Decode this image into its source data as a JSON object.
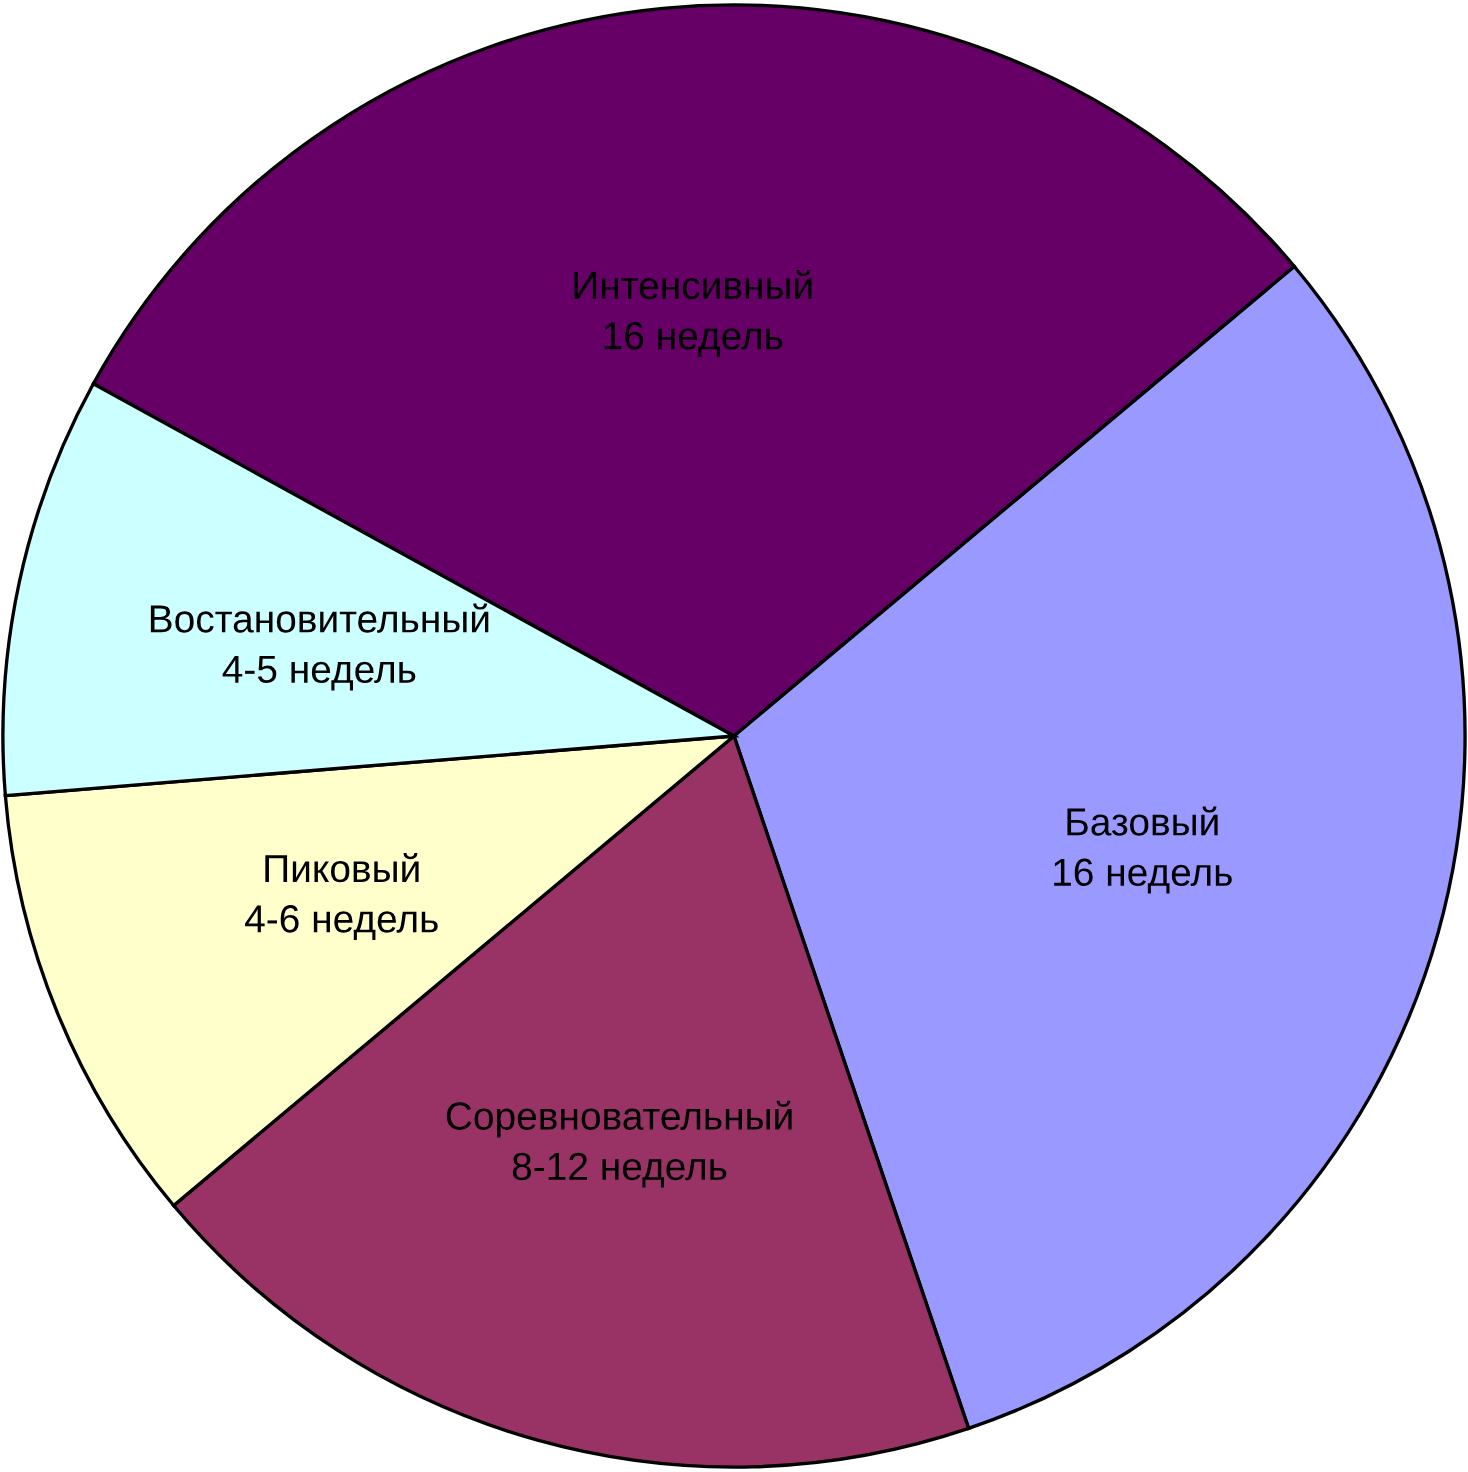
{
  "chart_data": {
    "type": "pie",
    "categories": [
      "Интенсивный\n16 недель",
      "Базовый\n16 недель",
      "Соревновательный\n8-12 недель",
      "Пиковый\n4-6 недель",
      "Востановительный\n4-5 недель"
    ],
    "values": [
      30.9,
      30.9,
      19.1,
      9.8,
      9.3
    ],
    "colors": [
      "#660066",
      "#9999ff",
      "#993366",
      "#ffffcc",
      "#ccffff"
    ],
    "legend": false
  }
}
